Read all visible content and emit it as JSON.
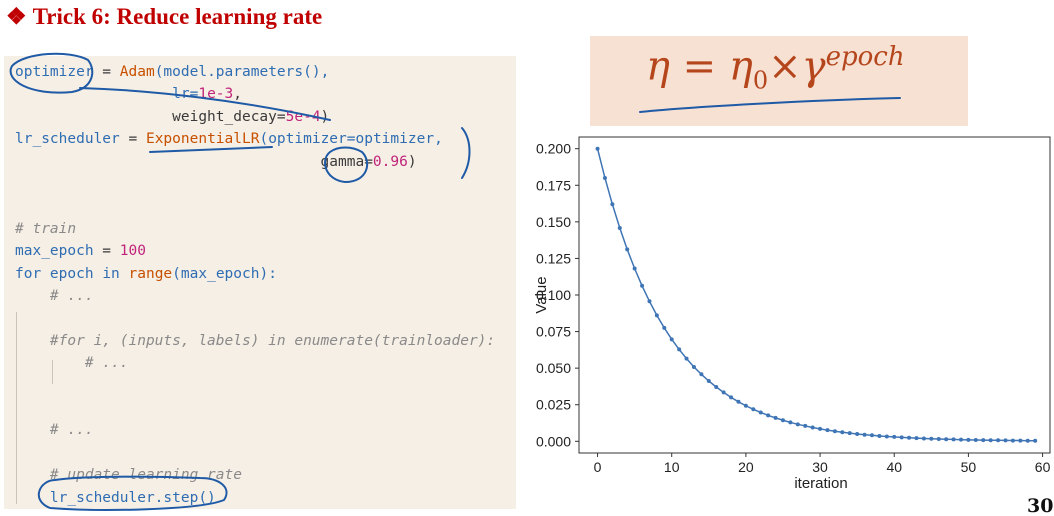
{
  "slide": {
    "title_bullet": "❖",
    "title": "Trick 6: Reduce learning rate",
    "page_number": "30"
  },
  "formula": {
    "lhs": "η = η",
    "sub": "0",
    "times": "×γ",
    "exponent": "epoch"
  },
  "code": {
    "lines": [
      [
        {
          "t": "optimizer",
          "c": "var"
        },
        {
          "t": " = ",
          "c": "op"
        },
        {
          "t": "Adam",
          "c": "func"
        },
        {
          "t": "(model.parameters(),",
          "c": "var"
        }
      ],
      [
        {
          "t": "                  ",
          "c": "op"
        },
        {
          "t": "lr=",
          "c": "var"
        },
        {
          "t": "1e-3",
          "c": "num"
        },
        {
          "t": ",",
          "c": "op"
        }
      ],
      [
        {
          "t": "                  weight_decay=",
          "c": "op"
        },
        {
          "t": "5e-4",
          "c": "num"
        },
        {
          "t": ")",
          "c": "op"
        }
      ],
      [
        {
          "t": "lr_scheduler",
          "c": "var"
        },
        {
          "t": " = ",
          "c": "op"
        },
        {
          "t": "ExponentialLR",
          "c": "func"
        },
        {
          "t": "(optimizer=optimizer,",
          "c": "var"
        }
      ],
      [
        {
          "t": "                                   gamma=",
          "c": "op"
        },
        {
          "t": "0.96",
          "c": "num"
        },
        {
          "t": ")",
          "c": "op"
        }
      ],
      [],
      [],
      [
        {
          "t": "# train",
          "c": "comment"
        }
      ],
      [
        {
          "t": "max_epoch",
          "c": "var"
        },
        {
          "t": " = ",
          "c": "op"
        },
        {
          "t": "100",
          "c": "num"
        }
      ],
      [
        {
          "t": "for",
          "c": "kw"
        },
        {
          "t": " epoch ",
          "c": "var"
        },
        {
          "t": "in",
          "c": "kw"
        },
        {
          "t": " ",
          "c": "op"
        },
        {
          "t": "range",
          "c": "func"
        },
        {
          "t": "(max_epoch):",
          "c": "var"
        }
      ],
      [
        {
          "t": "    # ...",
          "c": "comment"
        }
      ],
      [],
      [
        {
          "t": "    #for i, (inputs, labels) in enumerate(trainloader):",
          "c": "comment"
        }
      ],
      [
        {
          "t": "        # ...",
          "c": "comment"
        }
      ],
      [],
      [],
      [
        {
          "t": "    # ...",
          "c": "comment"
        }
      ],
      [],
      [
        {
          "t": "    # update learning rate",
          "c": "comment"
        }
      ],
      [
        {
          "t": "    lr_scheduler.step()",
          "c": "var"
        }
      ]
    ]
  },
  "chart_data": {
    "type": "line",
    "title": "",
    "xlabel": "iteration",
    "ylabel": "Value",
    "xlim": [
      -2.5,
      61
    ],
    "ylim": [
      -0.008,
      0.208
    ],
    "xticks": [
      0,
      10,
      20,
      30,
      40,
      50,
      60
    ],
    "yticks": [
      0.0,
      0.025,
      0.05,
      0.075,
      0.1,
      0.125,
      0.15,
      0.175,
      0.2
    ],
    "ytick_labels": [
      "0.000",
      "0.025",
      "0.050",
      "0.075",
      "0.100",
      "0.125",
      "0.150",
      "0.175",
      "0.200"
    ],
    "grid": false,
    "marker": "dot",
    "series": [
      {
        "color": "#3f75b5",
        "x": [
          0,
          1,
          2,
          3,
          4,
          5,
          6,
          7,
          8,
          9,
          10,
          11,
          12,
          13,
          14,
          15,
          16,
          17,
          18,
          19,
          20,
          21,
          22,
          23,
          24,
          25,
          26,
          27,
          28,
          29,
          30,
          31,
          32,
          33,
          34,
          35,
          36,
          37,
          38,
          39,
          40,
          41,
          42,
          43,
          44,
          45,
          46,
          47,
          48,
          49,
          50,
          51,
          52,
          53,
          54,
          55,
          56,
          57,
          58,
          59
        ],
        "values": [
          0.2,
          0.18,
          0.162,
          0.1458,
          0.1312,
          0.1181,
          0.1063,
          0.0957,
          0.0861,
          0.0775,
          0.0697,
          0.0628,
          0.0565,
          0.0508,
          0.0458,
          0.0412,
          0.0371,
          0.0334,
          0.03,
          0.027,
          0.0243,
          0.0219,
          0.0197,
          0.0177,
          0.016,
          0.0144,
          0.0129,
          0.0116,
          0.0105,
          0.0094,
          0.0085,
          0.0076,
          0.0069,
          0.0062,
          0.0056,
          0.005,
          0.0045,
          0.0041,
          0.0036,
          0.0033,
          0.003,
          0.0027,
          0.0024,
          0.0022,
          0.0019,
          0.0017,
          0.0016,
          0.0014,
          0.0013,
          0.0011,
          0.001,
          0.0009,
          0.0008,
          0.0007,
          0.0007,
          0.0006,
          0.0005,
          0.0005,
          0.0004,
          0.0004
        ]
      }
    ]
  }
}
